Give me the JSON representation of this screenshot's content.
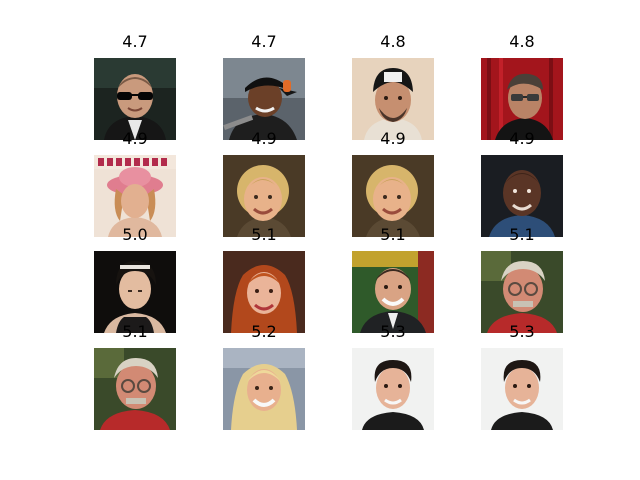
{
  "grid": {
    "rows": [
      [
        {
          "score": "4.7",
          "subject": "man-with-sunglasses-face"
        },
        {
          "score": "4.7",
          "subject": "baseball-player-face"
        },
        {
          "score": "4.8",
          "subject": "man-with-cap-face"
        },
        {
          "score": "4.8",
          "subject": "man-with-sunglasses-red-curtain-face"
        }
      ],
      [
        {
          "score": "4.9",
          "subject": "woman-with-pink-hat-face"
        },
        {
          "score": "4.9",
          "subject": "smiling-woman-face"
        },
        {
          "score": "4.9",
          "subject": "smiling-woman-face"
        },
        {
          "score": "4.9",
          "subject": "bald-man-face"
        }
      ],
      [
        {
          "score": "5.0",
          "subject": "woman-looking-down-face"
        },
        {
          "score": "5.1",
          "subject": "red-haired-woman-face"
        },
        {
          "score": "5.1",
          "subject": "man-in-suit-face"
        },
        {
          "score": "5.1",
          "subject": "elderly-man-with-glasses-face"
        }
      ],
      [
        {
          "score": "5.1",
          "subject": "elderly-man-with-glasses-face"
        },
        {
          "score": "5.2",
          "subject": "blonde-woman-face"
        },
        {
          "score": "5.3",
          "subject": "young-man-face"
        },
        {
          "score": "5.3",
          "subject": "young-man-face"
        }
      ]
    ]
  }
}
